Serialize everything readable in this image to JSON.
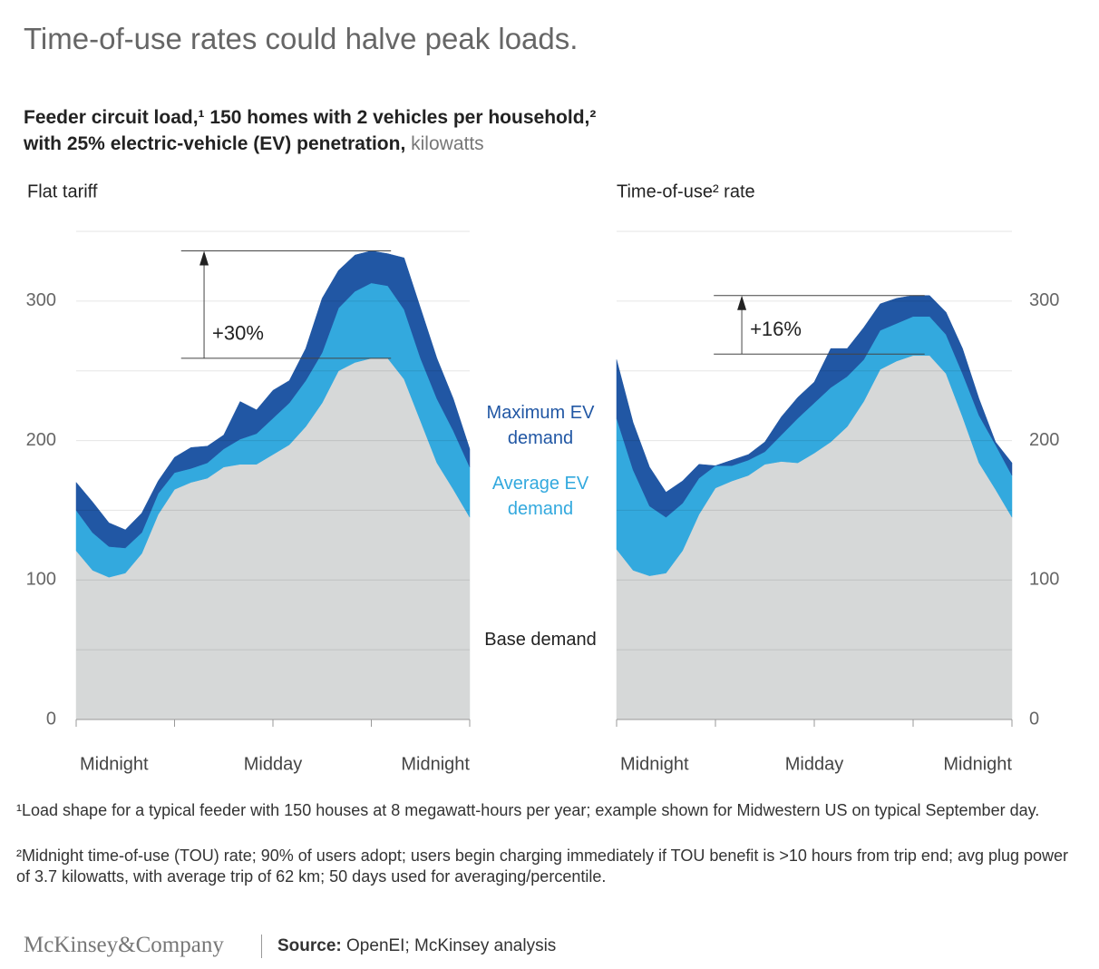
{
  "headline": "Time-of-use rates could halve peak loads.",
  "subtitle": [
    "Feeder circuit load,¹ 150 homes with 2 vehicles per household,²",
    "with 25% electric-vehicle (EV) penetration,"
  ],
  "unit": "kilowatts",
  "chart_data": [
    {
      "type": "stacked_area",
      "title": "Flat tariff",
      "x": [
        0,
        1,
        2,
        3,
        4,
        5,
        6,
        7,
        8,
        9,
        10,
        11,
        12,
        13,
        14,
        15,
        16,
        17,
        18,
        19,
        20,
        21,
        22,
        23,
        24
      ],
      "xlim": [
        0,
        24
      ],
      "xticks": [
        {
          "value": 0,
          "label": "Midnight"
        },
        {
          "value": 6,
          "label": null
        },
        {
          "value": 12,
          "label": "Midday"
        },
        {
          "value": 18,
          "label": null
        },
        {
          "value": 24,
          "label": "Midnight"
        }
      ],
      "ylim": [
        0,
        350
      ],
      "yticks": [
        0,
        100,
        200,
        300
      ],
      "grid_lines": [
        50,
        100,
        150,
        200,
        250,
        300,
        350
      ],
      "yaxis_side": "left",
      "series": [
        {
          "name": "Base demand",
          "color": "#d6d8d8",
          "values": [
            121,
            107,
            102,
            105,
            119,
            147,
            165,
            170,
            173,
            181,
            183,
            183,
            190,
            197,
            210,
            227,
            250,
            256,
            259,
            259,
            244,
            214,
            184,
            165,
            145
          ]
        },
        {
          "name": "Average EV demand",
          "color": "#33a9de",
          "values": [
            29,
            27,
            22,
            18,
            15,
            15,
            12,
            10,
            11,
            13,
            18,
            22,
            26,
            30,
            33,
            36,
            45,
            51,
            54,
            52,
            50,
            45,
            46,
            42,
            36
          ]
        },
        {
          "name": "Maximum EV demand",
          "color": "#2157a4",
          "values": [
            20,
            22,
            17,
            13,
            14,
            9,
            11,
            15,
            12,
            10,
            27,
            17,
            20,
            16,
            23,
            39,
            27,
            26,
            23,
            23,
            37,
            36,
            29,
            23,
            13
          ]
        }
      ],
      "annotation": {
        "label": "+30%",
        "from": 259,
        "to": 336
      }
    },
    {
      "type": "stacked_area",
      "title": "Time-of-use² rate",
      "x": [
        0,
        1,
        2,
        3,
        4,
        5,
        6,
        7,
        8,
        9,
        10,
        11,
        12,
        13,
        14,
        15,
        16,
        17,
        18,
        19,
        20,
        21,
        22,
        23,
        24
      ],
      "xlim": [
        0,
        24
      ],
      "xticks": [
        {
          "value": 0,
          "label": "Midnight"
        },
        {
          "value": 6,
          "label": null
        },
        {
          "value": 12,
          "label": "Midday"
        },
        {
          "value": 18,
          "label": null
        },
        {
          "value": 24,
          "label": "Midnight"
        }
      ],
      "ylim": [
        0,
        350
      ],
      "yticks": [
        0,
        100,
        200,
        300
      ],
      "grid_lines": [
        50,
        100,
        150,
        200,
        250,
        300,
        350
      ],
      "yaxis_side": "right",
      "series": [
        {
          "name": "Base demand",
          "color": "#d6d8d8",
          "values": [
            122,
            107,
            103,
            105,
            121,
            147,
            166,
            171,
            175,
            183,
            185,
            184,
            191,
            199,
            210,
            228,
            251,
            257,
            261,
            261,
            248,
            217,
            184,
            165,
            145
          ]
        },
        {
          "name": "Average EV demand",
          "color": "#33a9de",
          "values": [
            94,
            72,
            50,
            40,
            34,
            26,
            16,
            11,
            11,
            9,
            19,
            32,
            36,
            39,
            36,
            30,
            28,
            27,
            28,
            28,
            28,
            31,
            34,
            32,
            30
          ]
        },
        {
          "name": "Maximum EV demand",
          "color": "#2157a4",
          "values": [
            42,
            34,
            28,
            18,
            16,
            10,
            0,
            4,
            4,
            7,
            13,
            15,
            15,
            28,
            20,
            23,
            19,
            18,
            15,
            15,
            16,
            18,
            12,
            2,
            9
          ]
        }
      ],
      "annotation": {
        "label": "+16%",
        "from": 262,
        "to": 304
      }
    }
  ],
  "footnotes": [
    "¹Load shape for a typical feeder with 150 houses at 8 megawatt-hours per year; example shown for Midwestern US on typical September day.",
    "²Midnight time-of-use (TOU) rate; 90% of users adopt; users begin charging immediately if TOU benefit is >10 hours from trip end; avg plug power of 3.7 kilowatts, with average trip of 62 km; 50 days used for averaging/percentile."
  ],
  "logo": "McKinsey&Company",
  "source_label": "Source:",
  "source": "OpenEI; McKinsey analysis"
}
